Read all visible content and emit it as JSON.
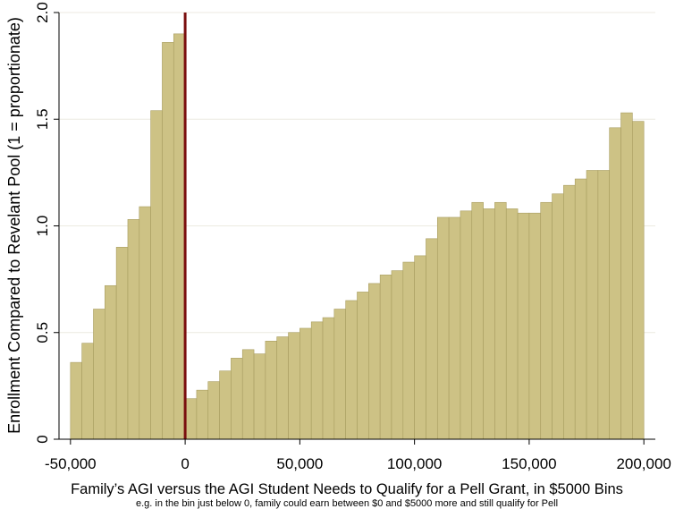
{
  "chart_data": {
    "type": "bar",
    "title": "",
    "xlabel": "Family’s AGI versus the AGI Student Needs to Qualify for a Pell Grant, in $5000 Bins",
    "xlabel_note": "e.g. in the bin just below 0, family could earn between $0 and $5000 more and still qualify for Pell",
    "ylabel": "Enrollment Compared to Revelant Pool (1 = proportionate)",
    "xlim": [
      -55000,
      205000
    ],
    "ylim": [
      0,
      2.0
    ],
    "bin_width": 5000,
    "x_ticks": [
      {
        "value": -50000,
        "label": "-50,000"
      },
      {
        "value": 0,
        "label": "0"
      },
      {
        "value": 50000,
        "label": "50,000"
      },
      {
        "value": 100000,
        "label": "100,000"
      },
      {
        "value": 150000,
        "label": "150,000"
      },
      {
        "value": 200000,
        "label": "200,000"
      }
    ],
    "y_ticks": [
      {
        "value": 0,
        "label": "0"
      },
      {
        "value": 0.5,
        "label": "0.5"
      },
      {
        "value": 1.0,
        "label": "1.0"
      },
      {
        "value": 1.5,
        "label": "1.5"
      },
      {
        "value": 2.0,
        "label": "2.0"
      }
    ],
    "grid": "horizontal",
    "cutoff_line": {
      "x": 0,
      "color": "#7a0f0f"
    },
    "bar_color": "#cdc285",
    "bar_edge_color": "#a89d60",
    "bins": [
      {
        "start": -50000,
        "value": 0.36
      },
      {
        "start": -45000,
        "value": 0.45
      },
      {
        "start": -40000,
        "value": 0.61
      },
      {
        "start": -35000,
        "value": 0.72
      },
      {
        "start": -30000,
        "value": 0.9
      },
      {
        "start": -25000,
        "value": 1.03
      },
      {
        "start": -20000,
        "value": 1.09
      },
      {
        "start": -15000,
        "value": 1.54
      },
      {
        "start": -10000,
        "value": 1.86
      },
      {
        "start": -5000,
        "value": 1.9
      },
      {
        "start": 0,
        "value": 0.19
      },
      {
        "start": 5000,
        "value": 0.23
      },
      {
        "start": 10000,
        "value": 0.27
      },
      {
        "start": 15000,
        "value": 0.32
      },
      {
        "start": 20000,
        "value": 0.38
      },
      {
        "start": 25000,
        "value": 0.42
      },
      {
        "start": 30000,
        "value": 0.4
      },
      {
        "start": 35000,
        "value": 0.46
      },
      {
        "start": 40000,
        "value": 0.48
      },
      {
        "start": 45000,
        "value": 0.5
      },
      {
        "start": 50000,
        "value": 0.52
      },
      {
        "start": 55000,
        "value": 0.55
      },
      {
        "start": 60000,
        "value": 0.57
      },
      {
        "start": 65000,
        "value": 0.61
      },
      {
        "start": 70000,
        "value": 0.65
      },
      {
        "start": 75000,
        "value": 0.69
      },
      {
        "start": 80000,
        "value": 0.73
      },
      {
        "start": 85000,
        "value": 0.77
      },
      {
        "start": 90000,
        "value": 0.79
      },
      {
        "start": 95000,
        "value": 0.83
      },
      {
        "start": 100000,
        "value": 0.86
      },
      {
        "start": 105000,
        "value": 0.94
      },
      {
        "start": 110000,
        "value": 1.04
      },
      {
        "start": 115000,
        "value": 1.04
      },
      {
        "start": 120000,
        "value": 1.07
      },
      {
        "start": 125000,
        "value": 1.11
      },
      {
        "start": 130000,
        "value": 1.08
      },
      {
        "start": 135000,
        "value": 1.11
      },
      {
        "start": 140000,
        "value": 1.08
      },
      {
        "start": 145000,
        "value": 1.06
      },
      {
        "start": 150000,
        "value": 1.06
      },
      {
        "start": 155000,
        "value": 1.11
      },
      {
        "start": 160000,
        "value": 1.15
      },
      {
        "start": 165000,
        "value": 1.19
      },
      {
        "start": 170000,
        "value": 1.22
      },
      {
        "start": 175000,
        "value": 1.26
      },
      {
        "start": 180000,
        "value": 1.26
      },
      {
        "start": 185000,
        "value": 1.46
      },
      {
        "start": 190000,
        "value": 1.53
      },
      {
        "start": 195000,
        "value": 1.49
      }
    ]
  }
}
